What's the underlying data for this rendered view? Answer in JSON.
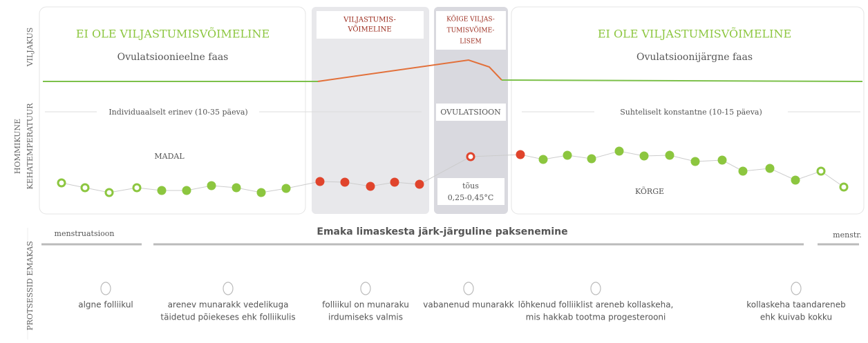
{
  "side_labels": {
    "fertility": "VILJAKUS",
    "temperature": [
      "HOMMIKUNE",
      "KEHATEMPERATUUR"
    ],
    "processes": "PROTSESSID EMAKAS"
  },
  "phases": [
    {
      "status": "EI OLE VILJASTUMISVÕIMELINE",
      "name": "Ovulatsioonieelne faas",
      "duration": "Individuaalselt erinev (10-35 päeva)",
      "temperature": "MADAL"
    },
    {
      "status": [
        "VILJASTUMIS-",
        "VÕIMELINE"
      ]
    },
    {
      "status": [
        "KÕIGE VILJAS-",
        "TUMISVÕIME-",
        "LISEM"
      ],
      "duration": "OVULATSIOON",
      "temperature": [
        "tõus",
        "0,25-0,45°C"
      ]
    },
    {
      "status": "EI OLE VILJASTUMISVÕIMELINE",
      "name": "Ovulatsioonijärgne faas",
      "duration": "Suhteliselt konstantne (10-15 päeva)",
      "temperature": "KÕRGE"
    }
  ],
  "uterus": {
    "start": "menstruatsioon",
    "middle": "Emaka limaskesta järk-järguline paksenemine",
    "end": "menstr."
  },
  "processes": [
    [
      "algne folliikul"
    ],
    [
      "arenev munarakk vedelikuga",
      "täidetud põiekeses ehk folliikulis"
    ],
    [
      "folliikul on munaraku",
      "irdumiseks valmis"
    ],
    [
      "vabanenud munarakk"
    ],
    [
      "lõhkenud folliiklist areneb kollaskeha,",
      "mis hakkab tootma progesterooni"
    ],
    [
      "kollaskeha taandareneb",
      "ehk kuivab kokku"
    ]
  ]
}
